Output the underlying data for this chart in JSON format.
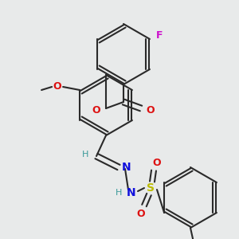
{
  "bg_color": "#e8eaea",
  "bond_color": "#2a2a2a",
  "colors": {
    "O": "#dd1111",
    "N": "#1111dd",
    "F": "#cc11cc",
    "S": "#bbbb00",
    "teal": "#3a9999",
    "C": "#2a2a2a"
  },
  "figsize": [
    3.0,
    3.0
  ],
  "dpi": 100,
  "xlim": [
    0,
    300
  ],
  "ylim": [
    0,
    300
  ]
}
